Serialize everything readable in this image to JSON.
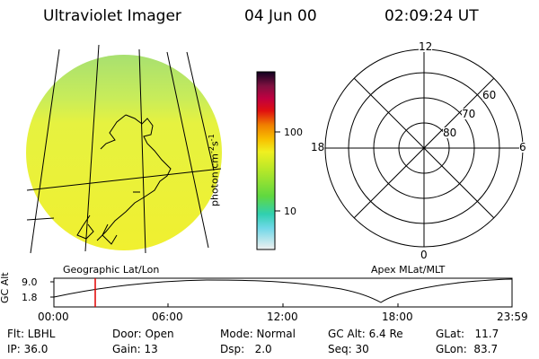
{
  "header": {
    "instrument": "Ultraviolet Imager",
    "date": "04 Jun 00",
    "time": "02:09:24 UT"
  },
  "colorbar": {
    "label": "photon cm",
    "exponent1": "-2",
    "mid": "s",
    "exponent2": "-1",
    "ticks": [
      "100",
      "10"
    ]
  },
  "polar_plot": {
    "mlt_labels": [
      "12",
      "18",
      "6",
      "0"
    ],
    "lat_labels": [
      "60",
      "70",
      "80"
    ]
  },
  "panel_labels": {
    "left": "Geographic Lat/Lon",
    "right": "Apex MLat/MLT"
  },
  "altitude_plot": {
    "ylabel": "GC Alt",
    "yticks": [
      "9.0",
      "1.8"
    ],
    "xticks": [
      "00:00",
      "06:00",
      "12:00",
      "18:00",
      "23:59"
    ],
    "marker_time": "02:09:24"
  },
  "status": {
    "flt": "Flt: LBHL",
    "ip": "IP: 36.0",
    "door": "Door: Open",
    "gain": "Gain: 13",
    "mode": "Mode: Normal",
    "dsp": "Dsp:   2.0",
    "gcalt": "GC Alt: 6.4 Re",
    "seq": "Seq: 30",
    "glat": "GLat:   11.7",
    "glon": "GLon:  83.7"
  },
  "colors": {
    "earth_fill": "#e8f040",
    "earth_edge": "#b8e65a",
    "marker": "#e00000"
  }
}
